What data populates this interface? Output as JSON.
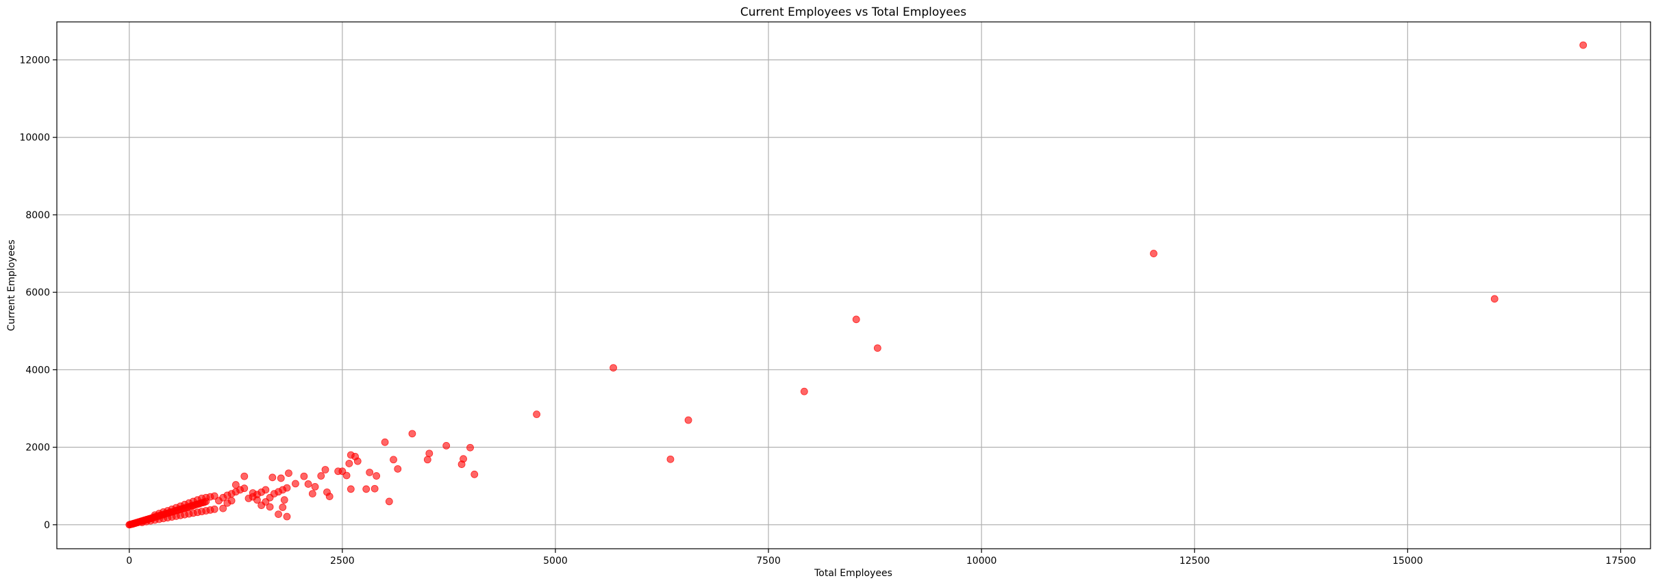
{
  "chart_data": {
    "type": "scatter",
    "title": "Current Employees vs Total Employees",
    "xlabel": "Total Employees",
    "ylabel": "Current Employees",
    "xlim": [
      -850,
      17850
    ],
    "ylim": [
      -620,
      12980
    ],
    "xticks": [
      0,
      2500,
      5000,
      7500,
      10000,
      12500,
      15000,
      17500
    ],
    "yticks": [
      0,
      2000,
      4000,
      6000,
      8000,
      10000,
      12000
    ],
    "grid": true,
    "marker_color": "#ff0000",
    "marker_alpha": 0.6,
    "series": [
      {
        "points": [
          [
            0,
            0
          ],
          [
            10,
            5
          ],
          [
            20,
            12
          ],
          [
            30,
            18
          ],
          [
            40,
            20
          ],
          [
            50,
            30
          ],
          [
            60,
            35
          ],
          [
            70,
            40
          ],
          [
            80,
            50
          ],
          [
            90,
            55
          ],
          [
            100,
            60
          ],
          [
            110,
            70
          ],
          [
            120,
            75
          ],
          [
            130,
            80
          ],
          [
            140,
            90
          ],
          [
            150,
            95
          ],
          [
            160,
            100
          ],
          [
            170,
            110
          ],
          [
            180,
            115
          ],
          [
            190,
            120
          ],
          [
            200,
            130
          ],
          [
            210,
            135
          ],
          [
            220,
            140
          ],
          [
            230,
            150
          ],
          [
            240,
            155
          ],
          [
            250,
            160
          ],
          [
            260,
            170
          ],
          [
            270,
            175
          ],
          [
            280,
            180
          ],
          [
            290,
            190
          ],
          [
            300,
            200
          ],
          [
            320,
            210
          ],
          [
            340,
            220
          ],
          [
            360,
            240
          ],
          [
            380,
            250
          ],
          [
            400,
            260
          ],
          [
            420,
            280
          ],
          [
            440,
            290
          ],
          [
            460,
            300
          ],
          [
            480,
            320
          ],
          [
            500,
            330
          ],
          [
            520,
            340
          ],
          [
            540,
            360
          ],
          [
            560,
            370
          ],
          [
            580,
            380
          ],
          [
            600,
            400
          ],
          [
            620,
            410
          ],
          [
            640,
            420
          ],
          [
            660,
            440
          ],
          [
            680,
            450
          ],
          [
            700,
            460
          ],
          [
            720,
            480
          ],
          [
            740,
            490
          ],
          [
            760,
            500
          ],
          [
            780,
            520
          ],
          [
            800,
            530
          ],
          [
            820,
            540
          ],
          [
            840,
            560
          ],
          [
            860,
            570
          ],
          [
            880,
            580
          ],
          [
            900,
            600
          ],
          [
            150,
            60
          ],
          [
            200,
            80
          ],
          [
            250,
            100
          ],
          [
            300,
            120
          ],
          [
            350,
            140
          ],
          [
            400,
            160
          ],
          [
            450,
            180
          ],
          [
            500,
            200
          ],
          [
            550,
            220
          ],
          [
            600,
            240
          ],
          [
            650,
            260
          ],
          [
            700,
            280
          ],
          [
            750,
            300
          ],
          [
            800,
            320
          ],
          [
            850,
            340
          ],
          [
            900,
            360
          ],
          [
            950,
            380
          ],
          [
            1000,
            400
          ],
          [
            300,
            250
          ],
          [
            350,
            290
          ],
          [
            400,
            330
          ],
          [
            450,
            360
          ],
          [
            500,
            400
          ],
          [
            550,
            440
          ],
          [
            600,
            480
          ],
          [
            650,
            520
          ],
          [
            700,
            560
          ],
          [
            750,
            600
          ],
          [
            800,
            640
          ],
          [
            850,
            680
          ],
          [
            900,
            700
          ],
          [
            950,
            720
          ],
          [
            1000,
            740
          ],
          [
            1050,
            620
          ],
          [
            1100,
            700
          ],
          [
            1150,
            760
          ],
          [
            1200,
            800
          ],
          [
            1250,
            850
          ],
          [
            1300,
            900
          ],
          [
            1350,
            940
          ],
          [
            1400,
            680
          ],
          [
            1450,
            720
          ],
          [
            1500,
            780
          ],
          [
            1550,
            840
          ],
          [
            1600,
            900
          ],
          [
            1650,
            700
          ],
          [
            1700,
            800
          ],
          [
            1750,
            850
          ],
          [
            1800,
            900
          ],
          [
            1850,
            950
          ],
          [
            1100,
            420
          ],
          [
            1150,
            560
          ],
          [
            1200,
            620
          ],
          [
            1250,
            1030
          ],
          [
            1350,
            1250
          ],
          [
            1450,
            820
          ],
          [
            1500,
            640
          ],
          [
            1550,
            500
          ],
          [
            1600,
            590
          ],
          [
            1650,
            460
          ],
          [
            1680,
            1220
          ],
          [
            1750,
            270
          ],
          [
            1780,
            1200
          ],
          [
            1800,
            450
          ],
          [
            1820,
            640
          ],
          [
            1850,
            210
          ],
          [
            1870,
            1330
          ],
          [
            1950,
            1060
          ],
          [
            2050,
            1250
          ],
          [
            2100,
            1050
          ],
          [
            2150,
            800
          ],
          [
            2180,
            980
          ],
          [
            2250,
            1260
          ],
          [
            2300,
            1420
          ],
          [
            2320,
            840
          ],
          [
            2350,
            730
          ],
          [
            2450,
            1380
          ],
          [
            2500,
            1380
          ],
          [
            2550,
            1270
          ],
          [
            2600,
            920
          ],
          [
            2580,
            1580
          ],
          [
            2600,
            1800
          ],
          [
            2650,
            1760
          ],
          [
            2680,
            1640
          ],
          [
            2780,
            920
          ],
          [
            2820,
            1350
          ],
          [
            2880,
            930
          ],
          [
            2900,
            1260
          ],
          [
            3000,
            2130
          ],
          [
            3050,
            600
          ],
          [
            3100,
            1680
          ],
          [
            3150,
            1440
          ],
          [
            3320,
            2350
          ],
          [
            3500,
            1680
          ],
          [
            3520,
            1840
          ],
          [
            3720,
            2040
          ],
          [
            3900,
            1560
          ],
          [
            3920,
            1700
          ],
          [
            4000,
            1990
          ],
          [
            4050,
            1300
          ],
          [
            4780,
            2850
          ],
          [
            5680,
            4050
          ],
          [
            6350,
            1690
          ],
          [
            6560,
            2700
          ],
          [
            7920,
            3440
          ],
          [
            8530,
            5300
          ],
          [
            8780,
            4560
          ],
          [
            12020,
            7000
          ],
          [
            16020,
            5830
          ],
          [
            17060,
            12380
          ]
        ]
      }
    ]
  }
}
